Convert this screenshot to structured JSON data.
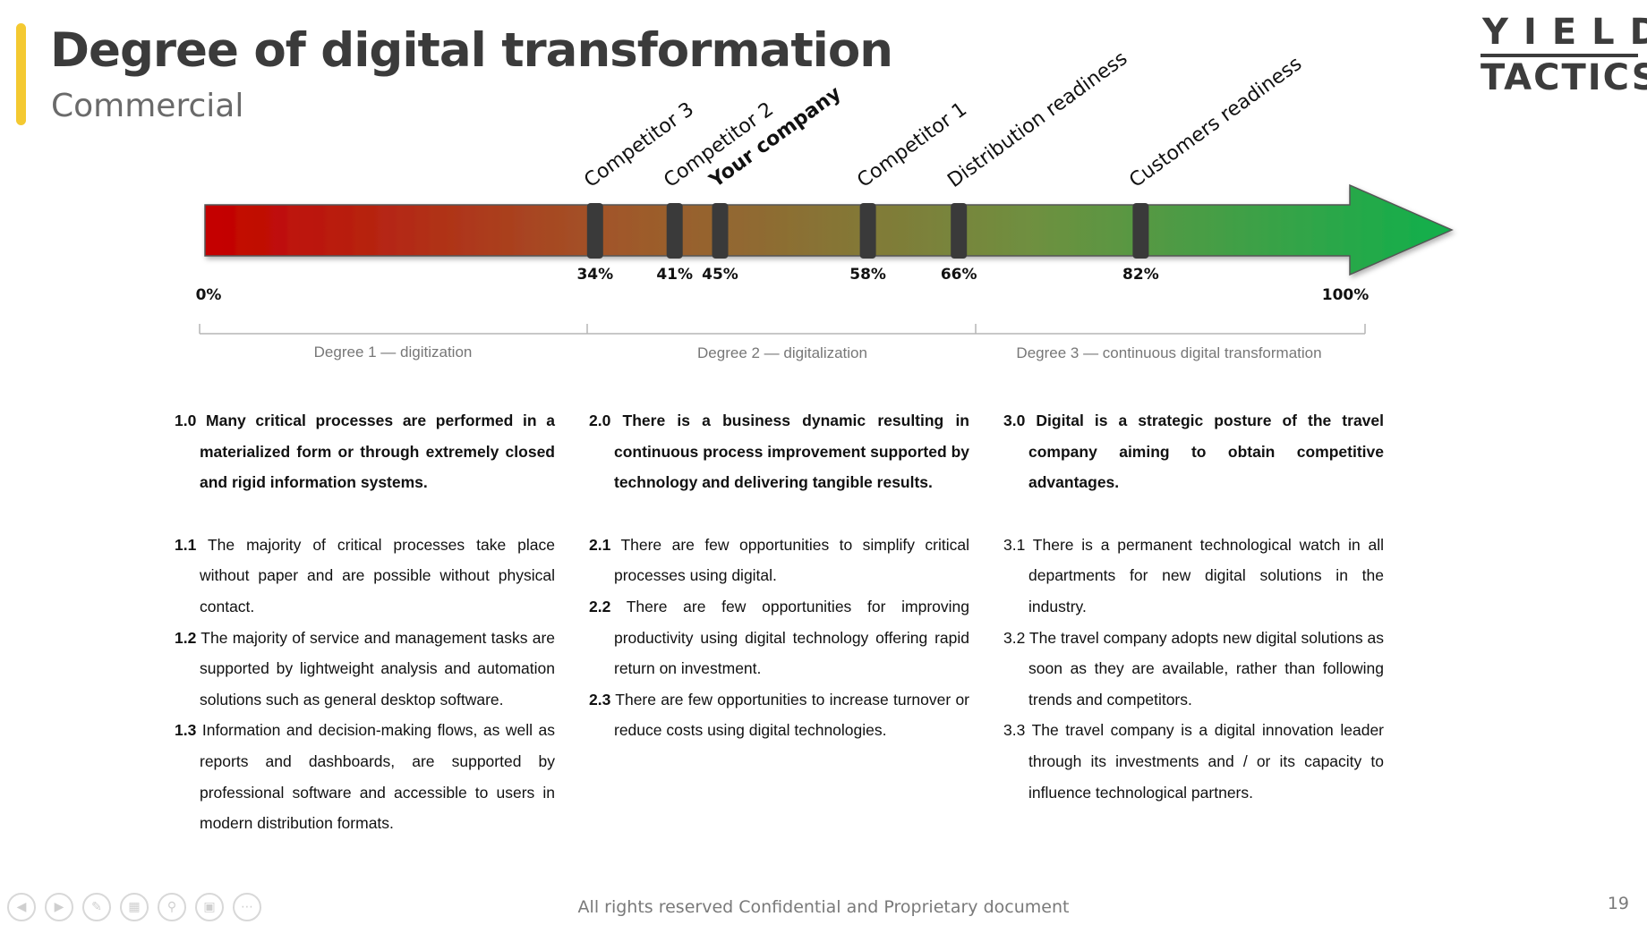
{
  "header": {
    "title": "Degree of digital transformation",
    "subtitle": "Commercial",
    "logo_line1": "YIELD",
    "logo_line2": "TACTICS"
  },
  "scale": {
    "start_label": "0%",
    "end_label": "100%",
    "markers": [
      {
        "name": "Competitor 3",
        "value": 34,
        "pct_label": "34%",
        "bold": false
      },
      {
        "name": "Competitor 2",
        "value": 41,
        "pct_label": "41%",
        "bold": false
      },
      {
        "name": "Your company",
        "value": 45,
        "pct_label": "45%",
        "bold": true
      },
      {
        "name": "Competitor 1",
        "value": 58,
        "pct_label": "58%",
        "bold": false
      },
      {
        "name": "Distribution readiness",
        "value": 66,
        "pct_label": "66%",
        "bold": false
      },
      {
        "name": "Customers readiness",
        "value": 82,
        "pct_label": "82%",
        "bold": false
      }
    ],
    "gradient_colors": [
      "#c50000",
      "#a0582a",
      "#6e9040",
      "#10b04c"
    ],
    "degrees": [
      {
        "label": "Degree 1 — digitization"
      },
      {
        "label": "Degree 2 — digitalization"
      },
      {
        "label": "Degree 3 — continuous digital transformation"
      }
    ]
  },
  "columns": [
    {
      "head_num": "1.0",
      "head_text": "Many critical processes are performed in a materialized form or through extremely closed and rigid information systems.",
      "items": [
        {
          "num": "1.1",
          "text": "The majority of critical processes take place without paper and are possible without physical contact."
        },
        {
          "num": "1.2",
          "text": "The majority of service and management tasks are supported by lightweight analysis and automation solutions such as general desktop software."
        },
        {
          "num": "1.3",
          "text": "Information and decision-making flows, as well as reports and dashboards, are supported by professional software and accessible to users in modern distribution formats."
        }
      ]
    },
    {
      "head_num": "2.0",
      "head_text": "There is a business dynamic resulting in continuous process improvement supported by technology and delivering tangible results.",
      "items": [
        {
          "num": "2.1",
          "text": "There are few opportunities to simplify critical processes using digital."
        },
        {
          "num": "2.2",
          "text": "There are few opportunities for improving productivity using digital technology offering rapid return on investment."
        },
        {
          "num": "2.3",
          "text": "There are few opportunities to increase turnover or reduce costs using digital technologies."
        }
      ]
    },
    {
      "head_num": "3.0",
      "head_text": "Digital is a strategic posture of the travel company aiming to obtain competitive advantages.",
      "items": [
        {
          "num": "3.1",
          "text": "There is a permanent technological watch in all departments for new digital solutions in the industry."
        },
        {
          "num": "3.2",
          "text": "The travel company adopts new digital solutions as soon as they are available, rather than following trends and competitors."
        },
        {
          "num": "3.3",
          "text": "The travel company is a digital innovation leader through its investments and / or its capacity to influence technological partners."
        }
      ]
    }
  ],
  "footer": {
    "text": "All rights reserved Confidential and Proprietary document",
    "page_number": "19",
    "nav_icons": [
      "previous-icon",
      "next-icon",
      "pen-icon",
      "slides-icon",
      "zoom-icon",
      "subtitles-icon",
      "more-icon"
    ]
  }
}
